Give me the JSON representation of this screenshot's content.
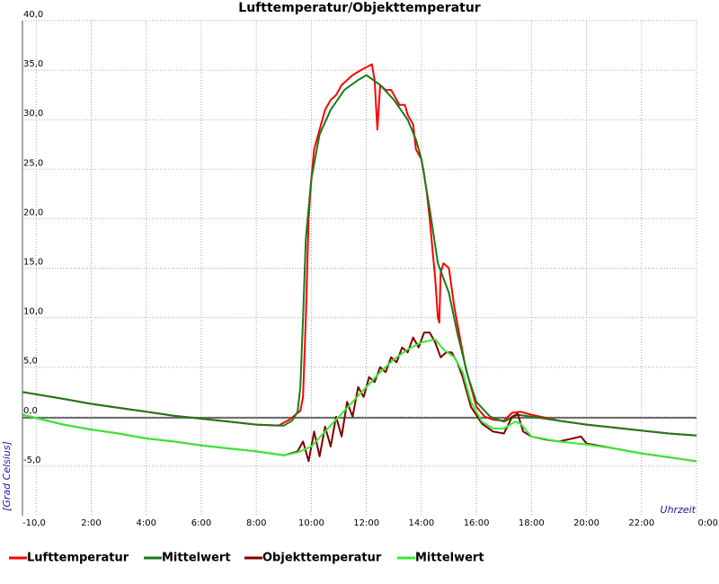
{
  "chart_data": {
    "type": "line",
    "title": "Lufttemperatur/Objekttemperatur",
    "xlabel": "Uhrzeit",
    "ylabel": "[Grad Celsius]",
    "xlim": [
      -0.5,
      24
    ],
    "ylim": [
      -10,
      40
    ],
    "x_ticks": [
      {
        "x": 0,
        "label": "-10,0"
      },
      {
        "x": 2,
        "label": "2:00"
      },
      {
        "x": 4,
        "label": "4:00"
      },
      {
        "x": 6,
        "label": "6:00"
      },
      {
        "x": 8,
        "label": "8:00"
      },
      {
        "x": 10,
        "label": "10:00"
      },
      {
        "x": 12,
        "label": "12:00"
      },
      {
        "x": 14,
        "label": "14:00"
      },
      {
        "x": 16,
        "label": "16:00"
      },
      {
        "x": 18,
        "label": "18:00"
      },
      {
        "x": 20,
        "label": "20:00"
      },
      {
        "x": 22,
        "label": "22:00"
      },
      {
        "x": 24,
        "label": "0:00"
      }
    ],
    "y_ticks": [
      {
        "y": 40,
        "label": "40,0"
      },
      {
        "y": 35,
        "label": "35,0"
      },
      {
        "y": 30,
        "label": "30,0"
      },
      {
        "y": 25,
        "label": "25,0"
      },
      {
        "y": 20,
        "label": "20,0"
      },
      {
        "y": 15,
        "label": "15,0"
      },
      {
        "y": 10,
        "label": "10,0"
      },
      {
        "y": 5,
        "label": "5,0"
      },
      {
        "y": 0,
        "label": "0,0"
      },
      {
        "y": -5,
        "label": "-5,0"
      }
    ],
    "zero_line": 0,
    "grid": true,
    "legend_position": "bottom",
    "series": [
      {
        "name": "Lufttemperatur",
        "color": "#ff0000",
        "points": [
          [
            -0.5,
            2.5
          ],
          [
            1,
            1.8
          ],
          [
            2,
            1.3
          ],
          [
            3,
            0.9
          ],
          [
            4,
            0.5
          ],
          [
            5,
            0.1
          ],
          [
            6,
            -0.2
          ],
          [
            7,
            -0.5
          ],
          [
            8,
            -0.8
          ],
          [
            8.8,
            -0.9
          ],
          [
            9.2,
            -0.3
          ],
          [
            9.6,
            0.6
          ],
          [
            9.7,
            2.0
          ],
          [
            9.8,
            10
          ],
          [
            9.9,
            20
          ],
          [
            10.0,
            24
          ],
          [
            10.1,
            27
          ],
          [
            10.3,
            29
          ],
          [
            10.5,
            31
          ],
          [
            10.7,
            32
          ],
          [
            10.9,
            32.5
          ],
          [
            11.1,
            33.5
          ],
          [
            11.3,
            34
          ],
          [
            11.5,
            34.5
          ],
          [
            11.8,
            35
          ],
          [
            12.0,
            35.3
          ],
          [
            12.2,
            35.6
          ],
          [
            12.3,
            34
          ],
          [
            12.4,
            29
          ],
          [
            12.5,
            33.5
          ],
          [
            12.7,
            33
          ],
          [
            12.9,
            33
          ],
          [
            13.0,
            32.5
          ],
          [
            13.2,
            31.5
          ],
          [
            13.4,
            31.5
          ],
          [
            13.5,
            30.5
          ],
          [
            13.7,
            29.5
          ],
          [
            13.8,
            27
          ],
          [
            14.0,
            26
          ],
          [
            14.1,
            24.5
          ],
          [
            14.2,
            22.5
          ],
          [
            14.3,
            20
          ],
          [
            14.4,
            17
          ],
          [
            14.5,
            14
          ],
          [
            14.6,
            10
          ],
          [
            14.65,
            9.5
          ],
          [
            14.7,
            14.5
          ],
          [
            14.8,
            15.5
          ],
          [
            15.0,
            15
          ],
          [
            15.2,
            11
          ],
          [
            15.4,
            8
          ],
          [
            15.6,
            5
          ],
          [
            15.8,
            3
          ],
          [
            16.0,
            1
          ],
          [
            16.3,
            0
          ],
          [
            16.6,
            -0.3
          ],
          [
            17.0,
            -0.4
          ],
          [
            17.3,
            0.4
          ],
          [
            17.6,
            0.5
          ],
          [
            18,
            0.2
          ],
          [
            19,
            -0.4
          ],
          [
            20,
            -0.8
          ],
          [
            21,
            -1.1
          ],
          [
            22,
            -1.4
          ],
          [
            23,
            -1.7
          ],
          [
            24,
            -1.9
          ]
        ]
      },
      {
        "name": "Mittelwert",
        "color": "#1a7a1a",
        "points": [
          [
            -0.5,
            2.5
          ],
          [
            1,
            1.8
          ],
          [
            2,
            1.3
          ],
          [
            3,
            0.9
          ],
          [
            4,
            0.5
          ],
          [
            5,
            0.1
          ],
          [
            6,
            -0.2
          ],
          [
            7,
            -0.5
          ],
          [
            8,
            -0.8
          ],
          [
            9,
            -0.9
          ],
          [
            9.3,
            -0.4
          ],
          [
            9.5,
            0.5
          ],
          [
            9.6,
            3
          ],
          [
            9.7,
            10
          ],
          [
            9.8,
            18
          ],
          [
            10.0,
            24
          ],
          [
            10.3,
            28.5
          ],
          [
            10.7,
            31
          ],
          [
            11.2,
            33
          ],
          [
            11.7,
            34
          ],
          [
            12.0,
            34.5
          ],
          [
            12.5,
            33.5
          ],
          [
            13.0,
            32
          ],
          [
            13.5,
            30
          ],
          [
            13.8,
            28
          ],
          [
            14.0,
            26
          ],
          [
            14.3,
            21
          ],
          [
            14.6,
            15.5
          ],
          [
            15.0,
            12.5
          ],
          [
            15.3,
            8.5
          ],
          [
            15.7,
            4
          ],
          [
            16.0,
            1.5
          ],
          [
            16.5,
            0
          ],
          [
            17.0,
            -0.5
          ],
          [
            17.5,
            0.2
          ],
          [
            18,
            0
          ],
          [
            19,
            -0.4
          ],
          [
            20,
            -0.8
          ],
          [
            21,
            -1.1
          ],
          [
            22,
            -1.4
          ],
          [
            23,
            -1.7
          ],
          [
            24,
            -1.9
          ]
        ]
      },
      {
        "name": "Objekttemperatur",
        "color": "#800000",
        "points": [
          [
            -0.5,
            0.2
          ],
          [
            1,
            -0.8
          ],
          [
            2,
            -1.3
          ],
          [
            3,
            -1.7
          ],
          [
            4,
            -2.2
          ],
          [
            5,
            -2.5
          ],
          [
            6,
            -2.9
          ],
          [
            7,
            -3.2
          ],
          [
            8,
            -3.5
          ],
          [
            9,
            -3.9
          ],
          [
            9.5,
            -3.5
          ],
          [
            9.7,
            -2.5
          ],
          [
            9.9,
            -4.5
          ],
          [
            10.1,
            -1.5
          ],
          [
            10.3,
            -4
          ],
          [
            10.5,
            -1
          ],
          [
            10.7,
            -3
          ],
          [
            10.9,
            0
          ],
          [
            11.1,
            -2
          ],
          [
            11.3,
            1.5
          ],
          [
            11.5,
            0
          ],
          [
            11.7,
            3
          ],
          [
            11.9,
            2
          ],
          [
            12.1,
            4
          ],
          [
            12.3,
            3.5
          ],
          [
            12.5,
            5
          ],
          [
            12.7,
            4.5
          ],
          [
            12.9,
            6
          ],
          [
            13.1,
            5.5
          ],
          [
            13.3,
            7
          ],
          [
            13.5,
            6.5
          ],
          [
            13.7,
            8
          ],
          [
            13.9,
            7
          ],
          [
            14.1,
            8.5
          ],
          [
            14.3,
            8.5
          ],
          [
            14.5,
            7.5
          ],
          [
            14.7,
            6
          ],
          [
            14.9,
            6.5
          ],
          [
            15.1,
            6.5
          ],
          [
            15.3,
            5.5
          ],
          [
            15.5,
            4
          ],
          [
            15.8,
            1
          ],
          [
            16.2,
            -0.7
          ],
          [
            16.6,
            -1.5
          ],
          [
            17.0,
            -1.7
          ],
          [
            17.3,
            0
          ],
          [
            17.5,
            0.3
          ],
          [
            17.7,
            -1.5
          ],
          [
            18,
            -2
          ],
          [
            18.5,
            -2.3
          ],
          [
            19,
            -2.5
          ],
          [
            19.5,
            -2.2
          ],
          [
            19.8,
            -2
          ],
          [
            20,
            -2.7
          ],
          [
            21,
            -3.2
          ],
          [
            22,
            -3.7
          ],
          [
            23,
            -4.1
          ],
          [
            24,
            -4.5
          ]
        ]
      },
      {
        "name": "Mittelwert",
        "color": "#33ee33",
        "points": [
          [
            -0.5,
            0.2
          ],
          [
            1,
            -0.8
          ],
          [
            2,
            -1.3
          ],
          [
            3,
            -1.7
          ],
          [
            4,
            -2.2
          ],
          [
            5,
            -2.5
          ],
          [
            6,
            -2.9
          ],
          [
            7,
            -3.2
          ],
          [
            8,
            -3.5
          ],
          [
            9,
            -3.9
          ],
          [
            9.5,
            -3.6
          ],
          [
            10,
            -3
          ],
          [
            10.5,
            -1.5
          ],
          [
            11,
            0
          ],
          [
            11.5,
            1.5
          ],
          [
            12,
            3
          ],
          [
            12.5,
            4.5
          ],
          [
            13,
            5.8
          ],
          [
            13.5,
            6.8
          ],
          [
            14,
            7.5
          ],
          [
            14.5,
            7.8
          ],
          [
            14.8,
            6.8
          ],
          [
            15.2,
            6
          ],
          [
            15.5,
            4.5
          ],
          [
            15.8,
            1.5
          ],
          [
            16.2,
            -0.5
          ],
          [
            16.6,
            -1.2
          ],
          [
            17.0,
            -1.2
          ],
          [
            17.4,
            -0.5
          ],
          [
            17.6,
            -0.7
          ],
          [
            18,
            -2
          ],
          [
            19,
            -2.5
          ],
          [
            20,
            -2.8
          ],
          [
            21,
            -3.2
          ],
          [
            22,
            -3.7
          ],
          [
            23,
            -4.1
          ],
          [
            24,
            -4.5
          ]
        ]
      }
    ]
  }
}
